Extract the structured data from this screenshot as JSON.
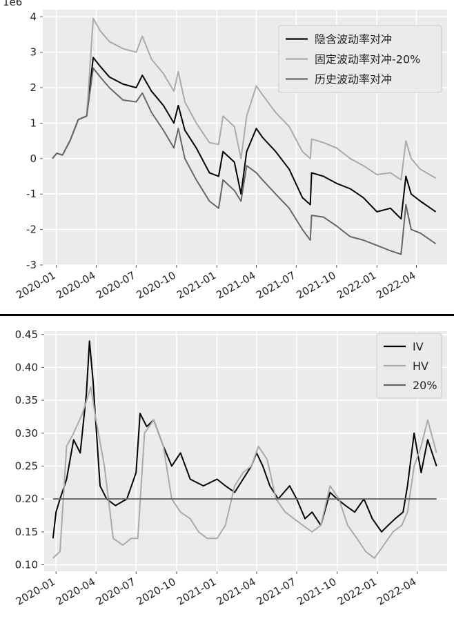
{
  "chart_data": [
    {
      "type": "line",
      "offset_label": "1e6",
      "ylim": [
        -3.0,
        4.2
      ],
      "yticks": [
        -3,
        -2,
        -1,
        0,
        1,
        2,
        3,
        4
      ],
      "x_ticks": [
        "2020-01",
        "2020-04",
        "2020-07",
        "2020-10",
        "2021-01",
        "2021-04",
        "2021-07",
        "2021-10",
        "2022-01",
        "2022-04"
      ],
      "grid": true,
      "legend_position": "top-right",
      "series": [
        {
          "name": "隐含波动率对冲",
          "color": "#000000",
          "x": [
            "2019-12-23",
            "2020-01-02",
            "2020-01-15",
            "2020-02-01",
            "2020-02-20",
            "2020-03-10",
            "2020-03-25",
            "2020-04-10",
            "2020-05-01",
            "2020-06-01",
            "2020-07-01",
            "2020-07-15",
            "2020-08-05",
            "2020-09-01",
            "2020-09-25",
            "2020-10-05",
            "2020-10-20",
            "2020-11-15",
            "2020-12-15",
            "2021-01-05",
            "2021-01-15",
            "2021-02-10",
            "2021-02-25",
            "2021-03-10",
            "2021-04-01",
            "2021-04-15",
            "2021-05-15",
            "2021-06-15",
            "2021-07-15",
            "2021-08-02",
            "2021-08-05",
            "2021-09-01",
            "2021-10-01",
            "2021-11-01",
            "2021-12-01",
            "2022-01-01",
            "2022-02-01",
            "2022-02-25",
            "2022-03-08",
            "2022-03-20",
            "2022-04-10",
            "2022-05-15"
          ],
          "y": [
            0.0,
            0.15,
            0.1,
            0.5,
            1.1,
            1.2,
            2.85,
            2.6,
            2.3,
            2.1,
            2.0,
            2.35,
            1.9,
            1.5,
            1.0,
            1.5,
            0.8,
            0.3,
            -0.4,
            -0.5,
            0.2,
            -0.1,
            -1.0,
            0.2,
            0.85,
            0.6,
            0.2,
            -0.3,
            -1.1,
            -1.3,
            -0.4,
            -0.5,
            -0.7,
            -0.85,
            -1.1,
            -1.5,
            -1.4,
            -1.7,
            -0.5,
            -1.0,
            -1.2,
            -1.5
          ]
        },
        {
          "name": "固定波动率对冲-20%",
          "color": "#aaaaaa",
          "x": [
            "2019-12-23",
            "2020-01-02",
            "2020-01-15",
            "2020-02-01",
            "2020-02-20",
            "2020-03-10",
            "2020-03-25",
            "2020-04-10",
            "2020-05-01",
            "2020-06-01",
            "2020-07-01",
            "2020-07-15",
            "2020-08-05",
            "2020-09-01",
            "2020-09-25",
            "2020-10-05",
            "2020-10-20",
            "2020-11-15",
            "2020-12-15",
            "2021-01-05",
            "2021-01-15",
            "2021-02-10",
            "2021-02-25",
            "2021-03-10",
            "2021-04-01",
            "2021-04-15",
            "2021-05-15",
            "2021-06-15",
            "2021-07-15",
            "2021-08-02",
            "2021-08-05",
            "2021-09-01",
            "2021-10-01",
            "2021-11-01",
            "2021-12-01",
            "2022-01-01",
            "2022-02-01",
            "2022-02-25",
            "2022-03-08",
            "2022-03-20",
            "2022-04-10",
            "2022-05-15"
          ],
          "y": [
            0.0,
            0.15,
            0.1,
            0.5,
            1.1,
            1.2,
            3.95,
            3.6,
            3.3,
            3.1,
            3.0,
            3.45,
            2.8,
            2.4,
            1.9,
            2.45,
            1.6,
            1.0,
            0.45,
            0.4,
            1.2,
            0.9,
            0.0,
            1.2,
            2.05,
            1.8,
            1.3,
            0.9,
            0.2,
            0.0,
            0.55,
            0.45,
            0.3,
            0.0,
            -0.2,
            -0.45,
            -0.4,
            -0.6,
            0.5,
            0.0,
            -0.3,
            -0.55
          ]
        },
        {
          "name": "历史波动率对冲",
          "color": "#666666",
          "x": [
            "2019-12-23",
            "2020-01-02",
            "2020-01-15",
            "2020-02-01",
            "2020-02-20",
            "2020-03-10",
            "2020-03-25",
            "2020-04-10",
            "2020-05-01",
            "2020-06-01",
            "2020-07-01",
            "2020-07-15",
            "2020-08-05",
            "2020-09-01",
            "2020-09-25",
            "2020-10-05",
            "2020-10-20",
            "2020-11-15",
            "2020-12-15",
            "2021-01-05",
            "2021-01-15",
            "2021-02-10",
            "2021-02-25",
            "2021-03-10",
            "2021-04-01",
            "2021-04-15",
            "2021-05-15",
            "2021-06-15",
            "2021-07-15",
            "2021-08-02",
            "2021-08-05",
            "2021-09-01",
            "2021-10-01",
            "2021-11-01",
            "2021-12-01",
            "2022-01-01",
            "2022-02-01",
            "2022-02-25",
            "2022-03-08",
            "2022-03-20",
            "2022-04-10",
            "2022-05-15"
          ],
          "y": [
            0.0,
            0.15,
            0.1,
            0.5,
            1.1,
            1.2,
            2.55,
            2.3,
            2.0,
            1.65,
            1.6,
            1.85,
            1.3,
            0.8,
            0.3,
            0.85,
            0.0,
            -0.6,
            -1.2,
            -1.4,
            -0.6,
            -0.9,
            -1.2,
            -0.2,
            -0.4,
            -0.6,
            -1.0,
            -1.4,
            -2.0,
            -2.3,
            -1.6,
            -1.65,
            -1.9,
            -2.2,
            -2.3,
            -2.45,
            -2.6,
            -2.7,
            -1.3,
            -2.0,
            -2.1,
            -2.4
          ]
        }
      ]
    },
    {
      "type": "line",
      "ylim": [
        0.09,
        0.455
      ],
      "yticks": [
        0.1,
        0.15,
        0.2,
        0.25,
        0.3,
        0.35,
        0.4,
        0.45
      ],
      "ytick_labels": [
        "0.10",
        "0.15",
        "0.20",
        "0.25",
        "0.30",
        "0.35",
        "0.40",
        "0.45"
      ],
      "x_ticks": [
        "2020-01",
        "2020-04",
        "2020-07",
        "2020-10",
        "2021-01",
        "2021-04",
        "2021-07",
        "2021-10",
        "2022-01",
        "2022-04"
      ],
      "grid": true,
      "legend_position": "top-right",
      "series": [
        {
          "name": "IV",
          "color": "#000000",
          "x": [
            "2019-12-25",
            "2020-01-01",
            "2020-01-10",
            "2020-01-25",
            "2020-02-10",
            "2020-02-25",
            "2020-03-10",
            "2020-03-17",
            "2020-03-25",
            "2020-04-10",
            "2020-04-25",
            "2020-05-15",
            "2020-06-10",
            "2020-07-01",
            "2020-07-10",
            "2020-07-25",
            "2020-08-10",
            "2020-09-01",
            "2020-09-20",
            "2020-10-10",
            "2020-11-01",
            "2020-12-01",
            "2021-01-01",
            "2021-01-20",
            "2021-02-10",
            "2021-03-01",
            "2021-03-20",
            "2021-04-01",
            "2021-04-15",
            "2021-05-01",
            "2021-05-20",
            "2021-06-15",
            "2021-07-01",
            "2021-07-20",
            "2021-08-05",
            "2021-08-25",
            "2021-09-15",
            "2021-10-01",
            "2021-10-20",
            "2021-11-10",
            "2021-12-01",
            "2021-12-20",
            "2022-01-10",
            "2022-01-25",
            "2022-02-10",
            "2022-02-28",
            "2022-03-10",
            "2022-03-25",
            "2022-04-10",
            "2022-04-25",
            "2022-05-15"
          ],
          "y": [
            0.14,
            0.18,
            0.2,
            0.23,
            0.29,
            0.27,
            0.36,
            0.44,
            0.38,
            0.22,
            0.2,
            0.19,
            0.2,
            0.24,
            0.33,
            0.31,
            0.32,
            0.28,
            0.25,
            0.27,
            0.23,
            0.22,
            0.23,
            0.22,
            0.21,
            0.23,
            0.25,
            0.27,
            0.25,
            0.22,
            0.2,
            0.22,
            0.2,
            0.17,
            0.18,
            0.16,
            0.21,
            0.2,
            0.19,
            0.18,
            0.2,
            0.17,
            0.15,
            0.16,
            0.17,
            0.18,
            0.22,
            0.3,
            0.24,
            0.29,
            0.25
          ]
        },
        {
          "name": "HV",
          "color": "#aaaaaa",
          "x": [
            "2019-12-25",
            "2020-01-10",
            "2020-01-25",
            "2020-02-10",
            "2020-03-01",
            "2020-03-20",
            "2020-04-01",
            "2020-04-20",
            "2020-05-10",
            "2020-06-01",
            "2020-06-20",
            "2020-07-05",
            "2020-07-20",
            "2020-08-10",
            "2020-09-01",
            "2020-09-20",
            "2020-10-10",
            "2020-11-01",
            "2020-11-20",
            "2020-12-10",
            "2021-01-01",
            "2021-01-20",
            "2021-02-10",
            "2021-03-01",
            "2021-03-20",
            "2021-04-05",
            "2021-04-25",
            "2021-05-15",
            "2021-06-05",
            "2021-06-25",
            "2021-07-15",
            "2021-08-05",
            "2021-08-25",
            "2021-09-15",
            "2021-10-05",
            "2021-10-25",
            "2021-11-15",
            "2021-12-05",
            "2021-12-25",
            "2022-01-15",
            "2022-02-05",
            "2022-02-25",
            "2022-03-10",
            "2022-03-25",
            "2022-04-10",
            "2022-04-25",
            "2022-05-15"
          ],
          "y": [
            0.11,
            0.12,
            0.28,
            0.3,
            0.33,
            0.37,
            0.32,
            0.25,
            0.14,
            0.13,
            0.14,
            0.14,
            0.3,
            0.32,
            0.28,
            0.2,
            0.18,
            0.17,
            0.15,
            0.14,
            0.14,
            0.16,
            0.22,
            0.24,
            0.25,
            0.28,
            0.26,
            0.2,
            0.18,
            0.17,
            0.16,
            0.15,
            0.16,
            0.22,
            0.2,
            0.16,
            0.14,
            0.12,
            0.11,
            0.13,
            0.15,
            0.16,
            0.18,
            0.25,
            0.28,
            0.32,
            0.27
          ]
        },
        {
          "name": "20%",
          "color": "#666666",
          "x": [
            "2019-12-25",
            "2022-05-15"
          ],
          "y": [
            0.2,
            0.2
          ]
        }
      ]
    }
  ]
}
